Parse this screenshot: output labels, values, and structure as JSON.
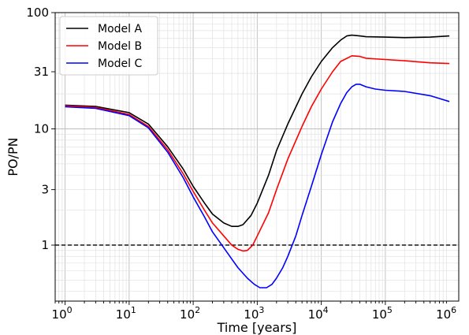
{
  "chart_data": {
    "type": "line",
    "title": "",
    "xlabel": "Time [years]",
    "ylabel": "PO/PN",
    "xscale": "log",
    "yscale": "log",
    "xlim": [
      0.7,
      1400000
    ],
    "ylim": [
      0.33,
      100
    ],
    "xticks": [
      1,
      10,
      100,
      1000,
      10000,
      100000,
      1000000
    ],
    "xtick_labels": [
      {
        "base": "10",
        "exp": "0"
      },
      {
        "base": "10",
        "exp": "1"
      },
      {
        "base": "10",
        "exp": "2"
      },
      {
        "base": "10",
        "exp": "3"
      },
      {
        "base": "10",
        "exp": "4"
      },
      {
        "base": "10",
        "exp": "5"
      },
      {
        "base": "10",
        "exp": "6"
      }
    ],
    "yticks": [
      1,
      3,
      10,
      31,
      100
    ],
    "ytick_labels": [
      "1",
      "3",
      "10",
      "31",
      "100"
    ],
    "grid": "major and minor",
    "legend_position": "top-left",
    "reference_line": {
      "y": 1,
      "style": "dashed",
      "color": "#000000"
    },
    "series": [
      {
        "name": "Model A",
        "color": "#000000",
        "points": [
          [
            1,
            16.0
          ],
          [
            3,
            15.6
          ],
          [
            10,
            13.8
          ],
          [
            20,
            11.0
          ],
          [
            40,
            7.0
          ],
          [
            70,
            4.5
          ],
          [
            100,
            3.2
          ],
          [
            150,
            2.3
          ],
          [
            200,
            1.85
          ],
          [
            300,
            1.55
          ],
          [
            400,
            1.45
          ],
          [
            500,
            1.45
          ],
          [
            600,
            1.5
          ],
          [
            800,
            1.8
          ],
          [
            1000,
            2.3
          ],
          [
            1500,
            4.0
          ],
          [
            2000,
            6.5
          ],
          [
            3000,
            11.0
          ],
          [
            5000,
            20.0
          ],
          [
            7000,
            28.0
          ],
          [
            10000,
            38.0
          ],
          [
            15000,
            50.0
          ],
          [
            20000,
            58.0
          ],
          [
            25000,
            63.0
          ],
          [
            30000,
            64.0
          ],
          [
            40000,
            63.0
          ],
          [
            50000,
            62.0
          ],
          [
            100000,
            61.5
          ],
          [
            200000,
            61.0
          ],
          [
            500000,
            61.5
          ],
          [
            1000000,
            63.0
          ]
        ]
      },
      {
        "name": "Model B",
        "color": "#ff0000",
        "points": [
          [
            1,
            15.8
          ],
          [
            3,
            15.3
          ],
          [
            10,
            13.3
          ],
          [
            20,
            10.5
          ],
          [
            40,
            6.6
          ],
          [
            70,
            4.1
          ],
          [
            100,
            2.9
          ],
          [
            150,
            2.0
          ],
          [
            200,
            1.55
          ],
          [
            300,
            1.2
          ],
          [
            400,
            1.0
          ],
          [
            500,
            0.92
          ],
          [
            600,
            0.89
          ],
          [
            700,
            0.9
          ],
          [
            850,
            1.0
          ],
          [
            1000,
            1.2
          ],
          [
            1500,
            1.9
          ],
          [
            2000,
            3.0
          ],
          [
            3000,
            5.5
          ],
          [
            5000,
            10.5
          ],
          [
            7000,
            15.5
          ],
          [
            10000,
            22.0
          ],
          [
            15000,
            31.0
          ],
          [
            20000,
            38.0
          ],
          [
            30000,
            42.5
          ],
          [
            40000,
            42.0
          ],
          [
            50000,
            40.5
          ],
          [
            100000,
            39.5
          ],
          [
            200000,
            38.5
          ],
          [
            500000,
            37.0
          ],
          [
            1000000,
            36.5
          ]
        ]
      },
      {
        "name": "Model C",
        "color": "#0000ff",
        "points": [
          [
            1,
            15.5
          ],
          [
            3,
            15.0
          ],
          [
            10,
            13.0
          ],
          [
            20,
            10.2
          ],
          [
            40,
            6.3
          ],
          [
            70,
            3.8
          ],
          [
            100,
            2.6
          ],
          [
            150,
            1.75
          ],
          [
            200,
            1.3
          ],
          [
            300,
            0.95
          ],
          [
            400,
            0.76
          ],
          [
            500,
            0.64
          ],
          [
            700,
            0.52
          ],
          [
            900,
            0.46
          ],
          [
            1100,
            0.43
          ],
          [
            1400,
            0.43
          ],
          [
            1700,
            0.46
          ],
          [
            2000,
            0.52
          ],
          [
            2500,
            0.64
          ],
          [
            3000,
            0.8
          ],
          [
            4000,
            1.2
          ],
          [
            5000,
            1.8
          ],
          [
            7000,
            3.2
          ],
          [
            10000,
            6.0
          ],
          [
            15000,
            11.5
          ],
          [
            20000,
            16.5
          ],
          [
            25000,
            20.5
          ],
          [
            30000,
            23.0
          ],
          [
            35000,
            24.2
          ],
          [
            40000,
            24.2
          ],
          [
            50000,
            23.0
          ],
          [
            70000,
            22.0
          ],
          [
            100000,
            21.5
          ],
          [
            200000,
            21.0
          ],
          [
            500000,
            19.3
          ],
          [
            1000000,
            17.2
          ]
        ]
      }
    ]
  }
}
